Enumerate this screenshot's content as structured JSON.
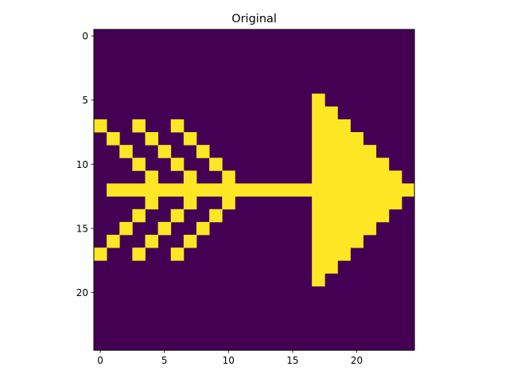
{
  "chart_data": {
    "type": "heatmap",
    "title": "Original",
    "xlabel": "",
    "ylabel": "",
    "grid": false,
    "colormap": "viridis",
    "colors": {
      "background": "#440154",
      "foreground": "#fde725"
    },
    "value_range": [
      0,
      1
    ],
    "shape": [
      25,
      25
    ],
    "xticks": [
      0,
      5,
      10,
      15,
      20
    ],
    "yticks": [
      0,
      5,
      10,
      15,
      20
    ],
    "xlim": [
      -0.5,
      24.5
    ],
    "ylim": [
      24.5,
      -0.5
    ],
    "rows": [
      "0000000000000000000000000",
      "0000000000000000000000000",
      "0000000000000000000000000",
      "0000000000000000000000000",
      "0000000000000000000000000",
      "0000000000000000010000000",
      "0000000000000000011000000",
      "1001001000000000011100000",
      "0100100100000000011110000",
      "0010010010000000011111000",
      "0001001001000000011111100",
      "0000100100100000011111110",
      "0111111111111111111111111",
      "0000100100100000011111110",
      "0001001001000000011111100",
      "0010010010000000011111000",
      "0100100100000000011110000",
      "1001001000000000011100000",
      "0000000000000000011000000",
      "0000000000000000010000000",
      "0000000000000000000000000",
      "0000000000000000000000000",
      "0000000000000000000000000",
      "0000000000000000000000000",
      "0000000000000000000000000"
    ]
  }
}
